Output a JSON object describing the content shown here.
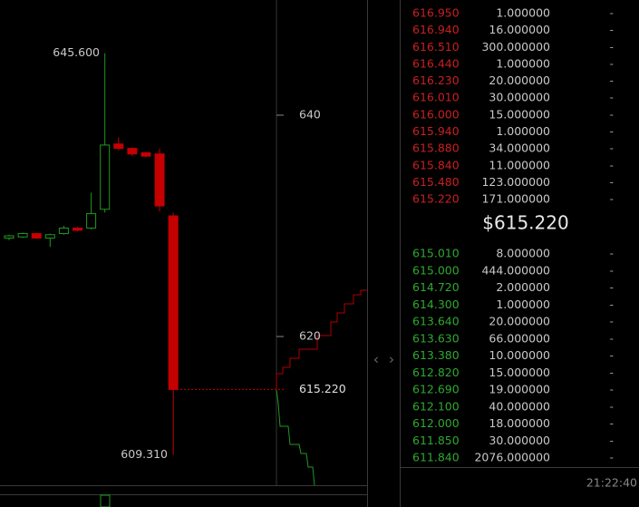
{
  "chart_data": {
    "type": "candlestick",
    "open": [
      628.9,
      629.0,
      629.3,
      628.9,
      629.3,
      629.8,
      629.8,
      631.5,
      637.4,
      637.0,
      636.6,
      636.5,
      630.9
    ],
    "high": [
      629.2,
      629.4,
      629.4,
      629.3,
      630.0,
      629.9,
      633.0,
      645.6,
      638.0,
      637.1,
      636.7,
      637.0,
      631.2
    ],
    "low": [
      628.7,
      628.9,
      628.8,
      628.1,
      629.2,
      629.5,
      629.7,
      631.2,
      636.8,
      636.3,
      636.2,
      631.3,
      609.31
    ],
    "close": [
      629.1,
      629.3,
      628.9,
      629.2,
      629.8,
      629.6,
      631.1,
      637.3,
      637.0,
      636.5,
      636.3,
      631.8,
      615.22
    ],
    "up_color": "#1f9a1f",
    "down_color": "#c40000",
    "ylim": [
      606.56,
      650.41
    ],
    "yticks": [
      620,
      640
    ],
    "high_label": {
      "value": 645.6,
      "label": "645.600"
    },
    "low_label": {
      "value": 609.31,
      "label": "609.310"
    },
    "last_label": {
      "value": 615.22,
      "label": "615.220"
    }
  },
  "order_book": {
    "asks": [
      [
        "616.950",
        "1.000000",
        "-"
      ],
      [
        "616.940",
        "16.000000",
        "-"
      ],
      [
        "616.510",
        "300.000000",
        "-"
      ],
      [
        "616.440",
        "1.000000",
        "-"
      ],
      [
        "616.230",
        "20.000000",
        "-"
      ],
      [
        "616.010",
        "30.000000",
        "-"
      ],
      [
        "616.000",
        "15.000000",
        "-"
      ],
      [
        "615.940",
        "1.000000",
        "-"
      ],
      [
        "615.880",
        "34.000000",
        "-"
      ],
      [
        "615.840",
        "11.000000",
        "-"
      ],
      [
        "615.480",
        "123.000000",
        "-"
      ],
      [
        "615.220",
        "171.000000",
        "-"
      ]
    ],
    "last_price": "$615.220",
    "bids": [
      [
        "615.010",
        "8.000000",
        "-"
      ],
      [
        "615.000",
        "444.000000",
        "-"
      ],
      [
        "614.720",
        "2.000000",
        "-"
      ],
      [
        "614.300",
        "1.000000",
        "-"
      ],
      [
        "613.640",
        "20.000000",
        "-"
      ],
      [
        "613.630",
        "66.000000",
        "-"
      ],
      [
        "613.380",
        "10.000000",
        "-"
      ],
      [
        "612.820",
        "15.000000",
        "-"
      ],
      [
        "612.690",
        "19.000000",
        "-"
      ],
      [
        "612.100",
        "40.000000",
        "-"
      ],
      [
        "612.000",
        "18.000000",
        "-"
      ],
      [
        "611.850",
        "30.000000",
        "-"
      ],
      [
        "611.840",
        "2076.000000",
        "-"
      ]
    ],
    "time": "21:22:40"
  }
}
